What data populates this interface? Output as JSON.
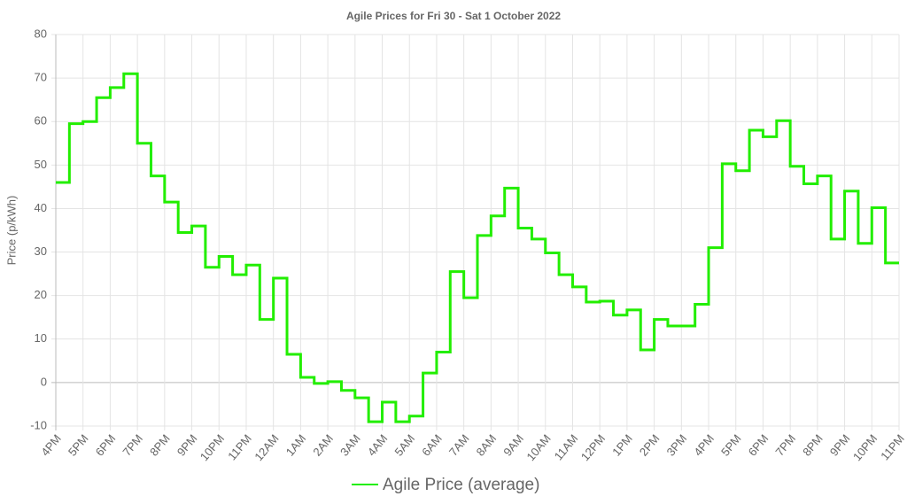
{
  "chart_data": {
    "type": "line",
    "stepped": true,
    "title": "Agile Prices for Fri 30 - Sat 1 October 2022",
    "y_label": "Price (p/kWh)",
    "categories": [
      "4PM",
      null,
      "5PM",
      null,
      "6PM",
      null,
      "7PM",
      null,
      "8PM",
      null,
      "9PM",
      null,
      "10PM",
      null,
      "11PM",
      null,
      "12AM",
      null,
      "1AM",
      null,
      "2AM",
      null,
      "3AM",
      null,
      "4AM",
      null,
      "5AM",
      null,
      "6AM",
      null,
      "7AM",
      null,
      "8AM",
      null,
      "9AM",
      null,
      "10AM",
      null,
      "11AM",
      null,
      "12PM",
      null,
      "1PM",
      null,
      "2PM",
      null,
      "3PM",
      null,
      "4PM",
      null,
      "5PM",
      null,
      "6PM",
      null,
      "7PM",
      null,
      "8PM",
      null,
      "9PM",
      null,
      "10PM",
      null,
      "11PM"
    ],
    "series": [
      {
        "name": "Agile Price (average)",
        "color": "#22ee00",
        "values": [
          46,
          59.5,
          60,
          65.5,
          67.8,
          71,
          55,
          47.5,
          41.5,
          34.5,
          36,
          26.5,
          29,
          24.8,
          27,
          14.5,
          24,
          6.5,
          1.2,
          -0.2,
          0.2,
          -1.8,
          -3.5,
          -9,
          -4.5,
          -9,
          -7.7,
          2.2,
          7,
          25.5,
          19.5,
          33.8,
          38.3,
          44.7,
          35.5,
          33,
          29.8,
          24.8,
          22,
          18.5,
          18.7,
          15.5,
          16.7,
          7.5,
          14.5,
          13,
          13,
          18,
          31,
          50.3,
          48.7,
          58,
          56.5,
          60.2,
          49.7,
          45.7,
          47.5,
          33,
          44,
          32,
          40.2,
          27.5,
          27.5
        ]
      }
    ],
    "ylim": [
      -10,
      80
    ],
    "yticks": [
      -10,
      0,
      10,
      20,
      30,
      40,
      50,
      60,
      70,
      80
    ],
    "grid": true,
    "legend": "bottom"
  }
}
